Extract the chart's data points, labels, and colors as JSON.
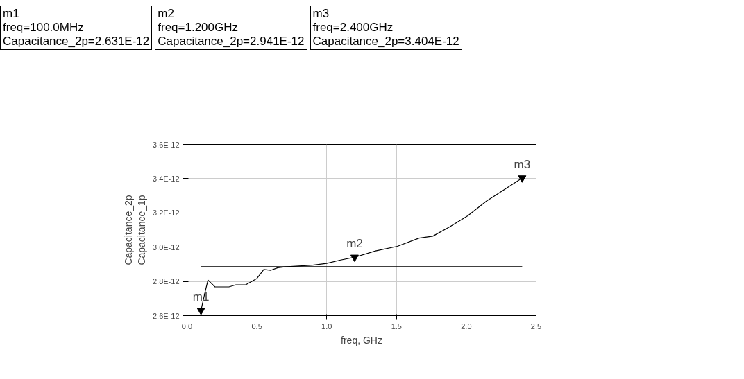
{
  "chart_data": {
    "type": "line",
    "xlabel": "freq, GHz",
    "ylabel": "Capacitance_2p\nCapacitance_1p",
    "series": [
      {
        "color": "#000000",
        "x": [
          0.1,
          0.13,
          0.15,
          0.2,
          0.3,
          0.35,
          0.42,
          0.5,
          0.55,
          0.6,
          0.65,
          0.7,
          0.8,
          0.9,
          1.0,
          1.1,
          1.2,
          1.35,
          1.506,
          1.662,
          1.76,
          1.88,
          2.01,
          2.144,
          2.277,
          2.4
        ],
        "values": [
          2.631e-12,
          2.74e-12,
          2.808e-12,
          2.768e-12,
          2.768e-12,
          2.78e-12,
          2.78e-12,
          2.817e-12,
          2.87e-12,
          2.865e-12,
          2.88e-12,
          2.885e-12,
          2.89e-12,
          2.895e-12,
          2.905e-12,
          2.925e-12,
          2.941e-12,
          2.978e-12,
          3.005e-12,
          3.053e-12,
          3.064e-12,
          3.118e-12,
          3.183e-12,
          3.269e-12,
          3.339e-12,
          3.404e-12
        ]
      },
      {
        "color": "#000000",
        "x": [
          0.1,
          2.4
        ],
        "values": [
          2.886e-12,
          2.886e-12
        ]
      }
    ],
    "xlim": [
      0,
      2.5
    ],
    "ylim": [
      2.6e-12,
      3.6e-12
    ],
    "xticks": [
      {
        "value": 0,
        "label": "0.0"
      },
      0.5,
      {
        "value": 1,
        "label": "1.0"
      },
      1.5,
      {
        "value": 2,
        "label": "2.0"
      },
      2.5
    ],
    "yticks": [
      {
        "value": 2.6e-12,
        "label": "2.6E-12"
      },
      {
        "value": 2.8e-12,
        "label": "2.8E-12"
      },
      {
        "value": 3e-12,
        "label": "3.0E-12"
      },
      {
        "value": 3.2e-12,
        "label": "3.2E-12"
      },
      {
        "value": 3.4e-12,
        "label": "3.4E-12"
      },
      {
        "value": 3.6e-12,
        "label": "3.6E-12"
      }
    ],
    "grid": true,
    "annotations": [
      "m1\nfreq=100.0MHz\nCapacitance_2p=2.631E-12",
      "m2\nfreq=1.200GHz\nCapacitance_2p=2.941E-12",
      "m3\nfreq=2.400GHz\nCapacitance_2p=3.404E-12",
      {
        "text": "m1",
        "x": 0.1,
        "y": 2.631e-12
      },
      {
        "text": "m2",
        "x": 1.2,
        "y": 2.941e-12
      },
      {
        "text": "m3",
        "x": 2.4,
        "y": 3.404e-12
      }
    ]
  }
}
